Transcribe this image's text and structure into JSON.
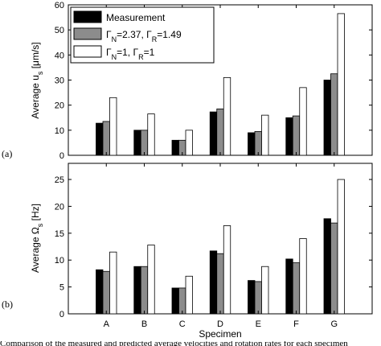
{
  "caption": "Comparison of the measured and predicted average velocities and rotation rates for each specimen",
  "legend": {
    "measurement": "Measurement",
    "model_a_prefix": "Γ",
    "model_a_sub1": "N",
    "model_a_mid": "=2.37, Γ",
    "model_a_sub2": "R",
    "model_a_suffix": "=1.49",
    "model_b_prefix": "Γ",
    "model_b_sub1": "N",
    "model_b_mid": "=1, Γ",
    "model_b_sub2": "R",
    "model_b_suffix": "=1"
  },
  "chart_data": [
    {
      "type": "bar",
      "panel_label": "(a)",
      "ylabel_main": "Average u",
      "ylabel_sub": "s",
      "ylabel_unit": " [μm/s]",
      "xlabel": "",
      "ylim": [
        0,
        60
      ],
      "yticks": [
        0,
        10,
        20,
        30,
        40,
        50,
        60
      ],
      "grid": false,
      "legend_position": "top-left",
      "categories": [
        "A",
        "B",
        "C",
        "D",
        "E",
        "F",
        "G"
      ],
      "show_xticklabels": false,
      "series": [
        {
          "name": "Measurement",
          "color": "#000000",
          "values": [
            12.8,
            10.0,
            6.0,
            17.3,
            9.0,
            15.0,
            30.0
          ]
        },
        {
          "name": "ΓN=2.37, ΓR=1.49",
          "color": "#8c8c8c",
          "values": [
            13.5,
            10.0,
            6.0,
            18.5,
            9.5,
            15.7,
            32.5
          ]
        },
        {
          "name": "ΓN=1, ΓR=1",
          "color": "#ffffff",
          "values": [
            23.0,
            16.5,
            10.0,
            31.0,
            16.0,
            27.0,
            56.5
          ]
        }
      ]
    },
    {
      "type": "bar",
      "panel_label": "(b)",
      "ylabel_main": "Average Ω",
      "ylabel_sub": "s",
      "ylabel_unit": " [Hz]",
      "xlabel": "Specimen",
      "ylim": [
        0,
        28
      ],
      "yticks": [
        0,
        5,
        10,
        15,
        20,
        25
      ],
      "grid": false,
      "categories": [
        "A",
        "B",
        "C",
        "D",
        "E",
        "F",
        "G"
      ],
      "show_xticklabels": true,
      "series": [
        {
          "name": "Measurement",
          "color": "#000000",
          "values": [
            8.2,
            8.8,
            4.8,
            11.7,
            6.2,
            10.2,
            17.7
          ]
        },
        {
          "name": "ΓN=2.37, ΓR=1.49",
          "color": "#8c8c8c",
          "values": [
            7.9,
            8.8,
            4.8,
            11.2,
            6.0,
            9.5,
            16.9
          ]
        },
        {
          "name": "ΓN=1, ΓR=1",
          "color": "#ffffff",
          "values": [
            11.5,
            12.8,
            7.0,
            16.4,
            8.8,
            14.0,
            25.0
          ]
        }
      ]
    }
  ]
}
